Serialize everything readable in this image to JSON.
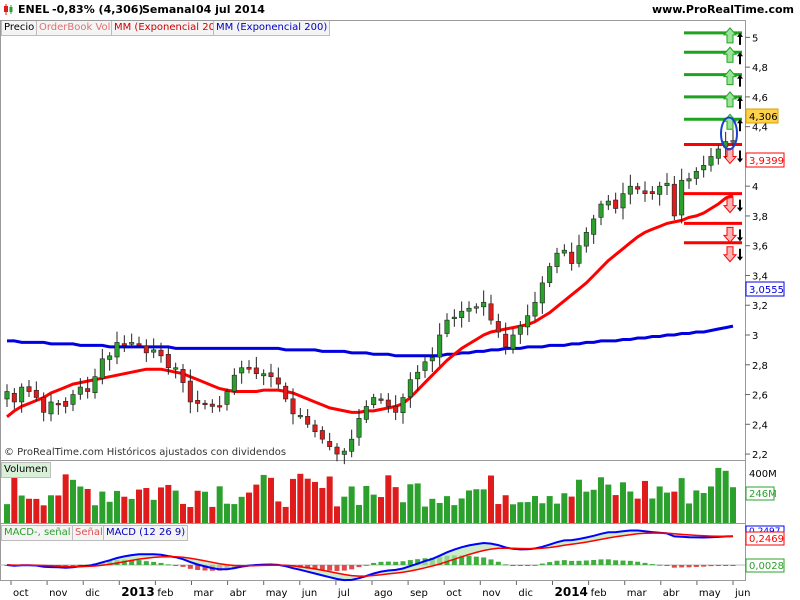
{
  "header": {
    "ticker": "ENEL",
    "change": "-0,83% (4,306)",
    "period": "Semanal",
    "date": "04 jul 2014",
    "brand": "www.ProRealTime.com"
  },
  "price_panel": {
    "legend": [
      {
        "label": "Precio",
        "color": "#000000"
      },
      {
        "label": "OrderBook Vol",
        "color": "#e07070"
      },
      {
        "label": "MM (Exponencial 20)",
        "color": "#d00000"
      },
      {
        "label": "MM (Exponencial 200)",
        "color": "#0000c0"
      }
    ],
    "copyright": "© ProRealTime.com  Históricos ajustados con dividendos",
    "last_price_tag": "4,306",
    "ema20_tag": "3,9399",
    "ema200_tag": "3,0555"
  },
  "volume_panel": {
    "label": "Volumen",
    "ticks": [
      "400M",
      "246M"
    ]
  },
  "macd_panel": {
    "labels": [
      "MACD-, señal",
      "Señal",
      "MACD (12 26 9)"
    ],
    "tag_signal": "0,2469",
    "tag_hist": "0,0028",
    "tag_macd": "0,2497"
  },
  "colors": {
    "up": "#2ca02c",
    "down": "#e01b1b",
    "ema20": "#ff0000",
    "ema200": "#0000e0",
    "target_up": "#1fa31f",
    "target_down": "#ff0000",
    "macd": "#0000ff",
    "signal": "#ff0000"
  },
  "chart_data": {
    "type": "candlestick",
    "title": "ENEL",
    "x_ticks": [
      "oct",
      "nov",
      "dic",
      "2013",
      "feb",
      "mar",
      "abr",
      "may",
      "jun",
      "jul",
      "ago",
      "sep",
      "oct",
      "nov",
      "dic",
      "2014",
      "feb",
      "mar",
      "abr",
      "may",
      "jun"
    ],
    "y_ticks": [
      2.2,
      2.4,
      2.6,
      2.8,
      3,
      3.2,
      3.4,
      3.6,
      3.8,
      4,
      4.2,
      4.4,
      4.6,
      4.8,
      5
    ],
    "ylim": [
      2.16,
      5.11
    ],
    "series": [
      {
        "name": "Precio",
        "close": [
          2.62,
          2.55,
          2.65,
          2.62,
          2.58,
          2.48,
          2.55,
          2.54,
          2.52,
          2.6,
          2.65,
          2.62,
          2.72,
          2.84,
          2.86,
          2.95,
          2.93,
          2.95,
          2.94,
          2.88,
          2.9,
          2.86,
          2.78,
          2.78,
          2.68,
          2.55,
          2.54,
          2.54,
          2.52,
          2.52,
          2.62,
          2.73,
          2.78,
          2.77,
          2.74,
          2.74,
          2.72,
          2.67,
          2.57,
          2.47,
          2.46,
          2.4,
          2.35,
          2.3,
          2.25,
          2.2,
          2.22,
          2.3,
          2.44,
          2.52,
          2.58,
          2.56,
          2.52,
          2.48,
          2.58,
          2.7,
          2.75,
          2.82,
          2.85,
          3.0,
          3.1,
          3.12,
          3.16,
          3.18,
          3.19,
          3.22,
          3.1,
          3.02,
          2.92,
          3.0,
          3.06,
          3.13,
          3.22,
          3.35,
          3.46,
          3.55,
          3.57,
          3.48,
          3.6,
          3.69,
          3.78,
          3.88,
          3.9,
          3.85,
          3.95,
          4.0,
          3.98,
          3.95,
          3.95,
          4.0,
          4.02,
          3.8,
          4.04,
          4.05,
          4.1,
          4.14,
          4.2,
          4.25,
          4.3,
          4.306
        ]
      },
      {
        "name": "MM (Exponencial 20)",
        "values": [
          2.45,
          2.49,
          2.52,
          2.54,
          2.56,
          2.58,
          2.61,
          2.63,
          2.65,
          2.67,
          2.68,
          2.69,
          2.7,
          2.71,
          2.72,
          2.73,
          2.74,
          2.75,
          2.76,
          2.77,
          2.77,
          2.77,
          2.76,
          2.75,
          2.74,
          2.72,
          2.7,
          2.68,
          2.66,
          2.64,
          2.63,
          2.62,
          2.62,
          2.62,
          2.62,
          2.63,
          2.63,
          2.63,
          2.62,
          2.61,
          2.59,
          2.57,
          2.55,
          2.53,
          2.51,
          2.5,
          2.49,
          2.48,
          2.48,
          2.49,
          2.49,
          2.5,
          2.51,
          2.52,
          2.54,
          2.58,
          2.63,
          2.68,
          2.73,
          2.78,
          2.83,
          2.87,
          2.91,
          2.94,
          2.97,
          3.0,
          3.02,
          3.03,
          3.04,
          3.05,
          3.06,
          3.07,
          3.09,
          3.12,
          3.15,
          3.19,
          3.23,
          3.27,
          3.31,
          3.35,
          3.4,
          3.45,
          3.5,
          3.54,
          3.58,
          3.62,
          3.66,
          3.69,
          3.71,
          3.73,
          3.75,
          3.76,
          3.77,
          3.79,
          3.8,
          3.82,
          3.85,
          3.88,
          3.92,
          3.94
        ]
      },
      {
        "name": "MM (Exponencial 200)",
        "values": [
          2.96,
          2.96,
          2.95,
          2.95,
          2.95,
          2.95,
          2.94,
          2.94,
          2.94,
          2.94,
          2.93,
          2.93,
          2.93,
          2.93,
          2.92,
          2.92,
          2.92,
          2.92,
          2.92,
          2.92,
          2.92,
          2.92,
          2.92,
          2.91,
          2.91,
          2.91,
          2.91,
          2.91,
          2.91,
          2.91,
          2.91,
          2.91,
          2.91,
          2.91,
          2.91,
          2.91,
          2.91,
          2.91,
          2.9,
          2.9,
          2.9,
          2.9,
          2.9,
          2.89,
          2.89,
          2.89,
          2.89,
          2.88,
          2.88,
          2.88,
          2.87,
          2.87,
          2.87,
          2.86,
          2.86,
          2.86,
          2.86,
          2.86,
          2.86,
          2.86,
          2.87,
          2.87,
          2.88,
          2.88,
          2.89,
          2.89,
          2.9,
          2.9,
          2.91,
          2.91,
          2.91,
          2.92,
          2.92,
          2.92,
          2.93,
          2.93,
          2.93,
          2.94,
          2.94,
          2.95,
          2.95,
          2.96,
          2.96,
          2.96,
          2.97,
          2.97,
          2.98,
          2.98,
          2.99,
          2.99,
          3.0,
          3.0,
          3.01,
          3.01,
          3.02,
          3.02,
          3.03,
          3.04,
          3.05,
          3.06
        ]
      }
    ],
    "target_lines_up": [
      5.03,
      4.9,
      4.75,
      4.6,
      4.45
    ],
    "target_lines_down": [
      4.28,
      3.95,
      3.75,
      3.62
    ],
    "volume": {
      "ylim": [
        0,
        420
      ],
      "ticks": [
        400,
        246
      ]
    },
    "macd": {
      "ylim": [
        -0.12,
        0.32
      ],
      "ticks": [
        0.2497,
        0.2469,
        0.0028
      ]
    },
    "grid": false,
    "legend_position": "top-left"
  }
}
